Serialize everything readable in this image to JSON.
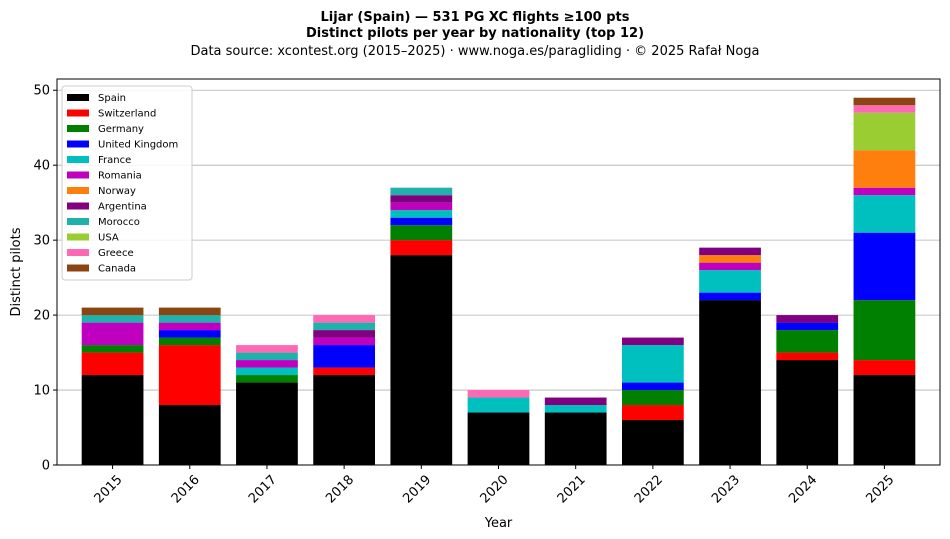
{
  "chart_data": {
    "type": "bar",
    "stacked": true,
    "title_lines": [
      "Lijar (Spain)  —  531 PG XC flights ≥100 pts",
      "Distinct pilots per year by nationality (top 12)",
      "Data source: xcontest.org (2015–2025)  ·  www.noga.es/paragliding  ·  © 2025 Rafał Noga"
    ],
    "xlabel": "Year",
    "ylabel": "Distinct pilots",
    "ylim": [
      0,
      51.5
    ],
    "yticks": [
      0,
      10,
      20,
      30,
      40,
      50
    ],
    "grid": "horizontal",
    "legend_position": "top-left",
    "categories": [
      "2015",
      "2016",
      "2017",
      "2018",
      "2019",
      "2020",
      "2021",
      "2022",
      "2023",
      "2024",
      "2025"
    ],
    "series": [
      {
        "name": "Spain",
        "color": "#000000",
        "values": [
          12,
          8,
          11,
          12,
          28,
          7,
          7,
          6,
          22,
          14,
          12
        ]
      },
      {
        "name": "Switzerland",
        "color": "#ff0000",
        "values": [
          3,
          8,
          0,
          1,
          2,
          0,
          0,
          2,
          0,
          1,
          2
        ]
      },
      {
        "name": "Germany",
        "color": "#008000",
        "values": [
          1,
          1,
          1,
          0,
          2,
          0,
          0,
          2,
          0,
          3,
          8
        ]
      },
      {
        "name": "United Kingdom",
        "color": "#0000ff",
        "values": [
          0,
          1,
          0,
          3,
          1,
          0,
          0,
          1,
          1,
          1,
          9
        ]
      },
      {
        "name": "France",
        "color": "#00bfbf",
        "values": [
          0,
          0,
          1,
          0,
          1,
          2,
          1,
          5,
          3,
          0,
          5
        ]
      },
      {
        "name": "Romania",
        "color": "#bf00bf",
        "values": [
          3,
          1,
          1,
          1,
          1,
          0,
          0,
          0,
          1,
          0,
          1
        ]
      },
      {
        "name": "Norway",
        "color": "#ff7f0e",
        "values": [
          0,
          0,
          0,
          0,
          0,
          0,
          0,
          0,
          1,
          0,
          5
        ]
      },
      {
        "name": "Argentina",
        "color": "#800080",
        "values": [
          0,
          0,
          0,
          1,
          1,
          0,
          1,
          1,
          1,
          1,
          0
        ]
      },
      {
        "name": "Morocco",
        "color": "#20b2aa",
        "values": [
          1,
          1,
          1,
          1,
          1,
          0,
          0,
          0,
          0,
          0,
          0
        ]
      },
      {
        "name": "USA",
        "color": "#9acd32",
        "values": [
          0,
          0,
          0,
          0,
          0,
          0,
          0,
          0,
          0,
          0,
          5
        ]
      },
      {
        "name": "Greece",
        "color": "#ff69b4",
        "values": [
          0,
          0,
          1,
          1,
          0,
          1,
          0,
          0,
          0,
          0,
          1
        ]
      },
      {
        "name": "Canada",
        "color": "#8b4513",
        "values": [
          1,
          1,
          0,
          0,
          0,
          0,
          0,
          0,
          0,
          0,
          1
        ]
      }
    ]
  }
}
